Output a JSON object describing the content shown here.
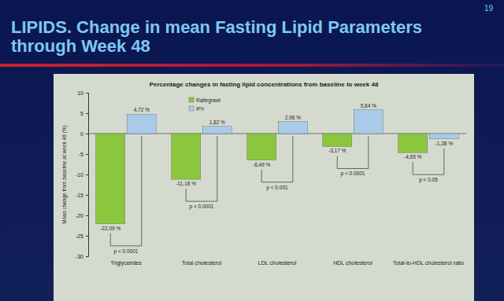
{
  "header": {
    "title_lines": [
      "LIPIDS. Change in mean Fasting Lipid Parameters",
      "through Week 48"
    ],
    "page_number": "19"
  },
  "chart_data": {
    "type": "bar",
    "title": "Percentage changes in fasting lipid concentrations from baseline to week 48",
    "y_label": "Mean change from baseline at week 48 (%)",
    "categories": [
      "Triglycerides",
      "Total cholesterol",
      "LDL cholesterol",
      "HDL cholesterol",
      "Total-to-HDL cholesterol ratio"
    ],
    "series": [
      {
        "name": "Raltegravir",
        "color": "#8cc63f",
        "values": [
          -22.09,
          -11.18,
          -6.49,
          -3.17,
          -4.65
        ],
        "value_labels": [
          "-22,09 %",
          "-11,18 %",
          "-6,49 %",
          "-3,17 %",
          "-4,65 %"
        ]
      },
      {
        "name": "IP/r",
        "color": "#a9cbe9",
        "values": [
          4.72,
          1.82,
          2.96,
          5.84,
          -1.28
        ],
        "value_labels": [
          "4,72 %",
          "1,82 %",
          "2,96 %",
          "5,84 %",
          "-1,28 %"
        ]
      }
    ],
    "annotations": [
      {
        "text": "p < 0.0001",
        "category": "Triglycerides"
      },
      {
        "text": "p < 0.0001",
        "category": "Total cholesterol"
      },
      {
        "text": "p < 0.001",
        "category": "LDL cholesterol"
      },
      {
        "text": "p < 0.0001",
        "category": "HDL cholesterol"
      },
      {
        "text": "p < 0.05",
        "category": "Total-to-HDL cholesterol ratio"
      }
    ],
    "ylim": [
      -30,
      10
    ],
    "yticks": [
      10,
      5,
      0,
      -5,
      -10,
      -15,
      -20,
      -25,
      -30
    ],
    "legend": "top-left",
    "data_labels": true,
    "grid": false
  }
}
